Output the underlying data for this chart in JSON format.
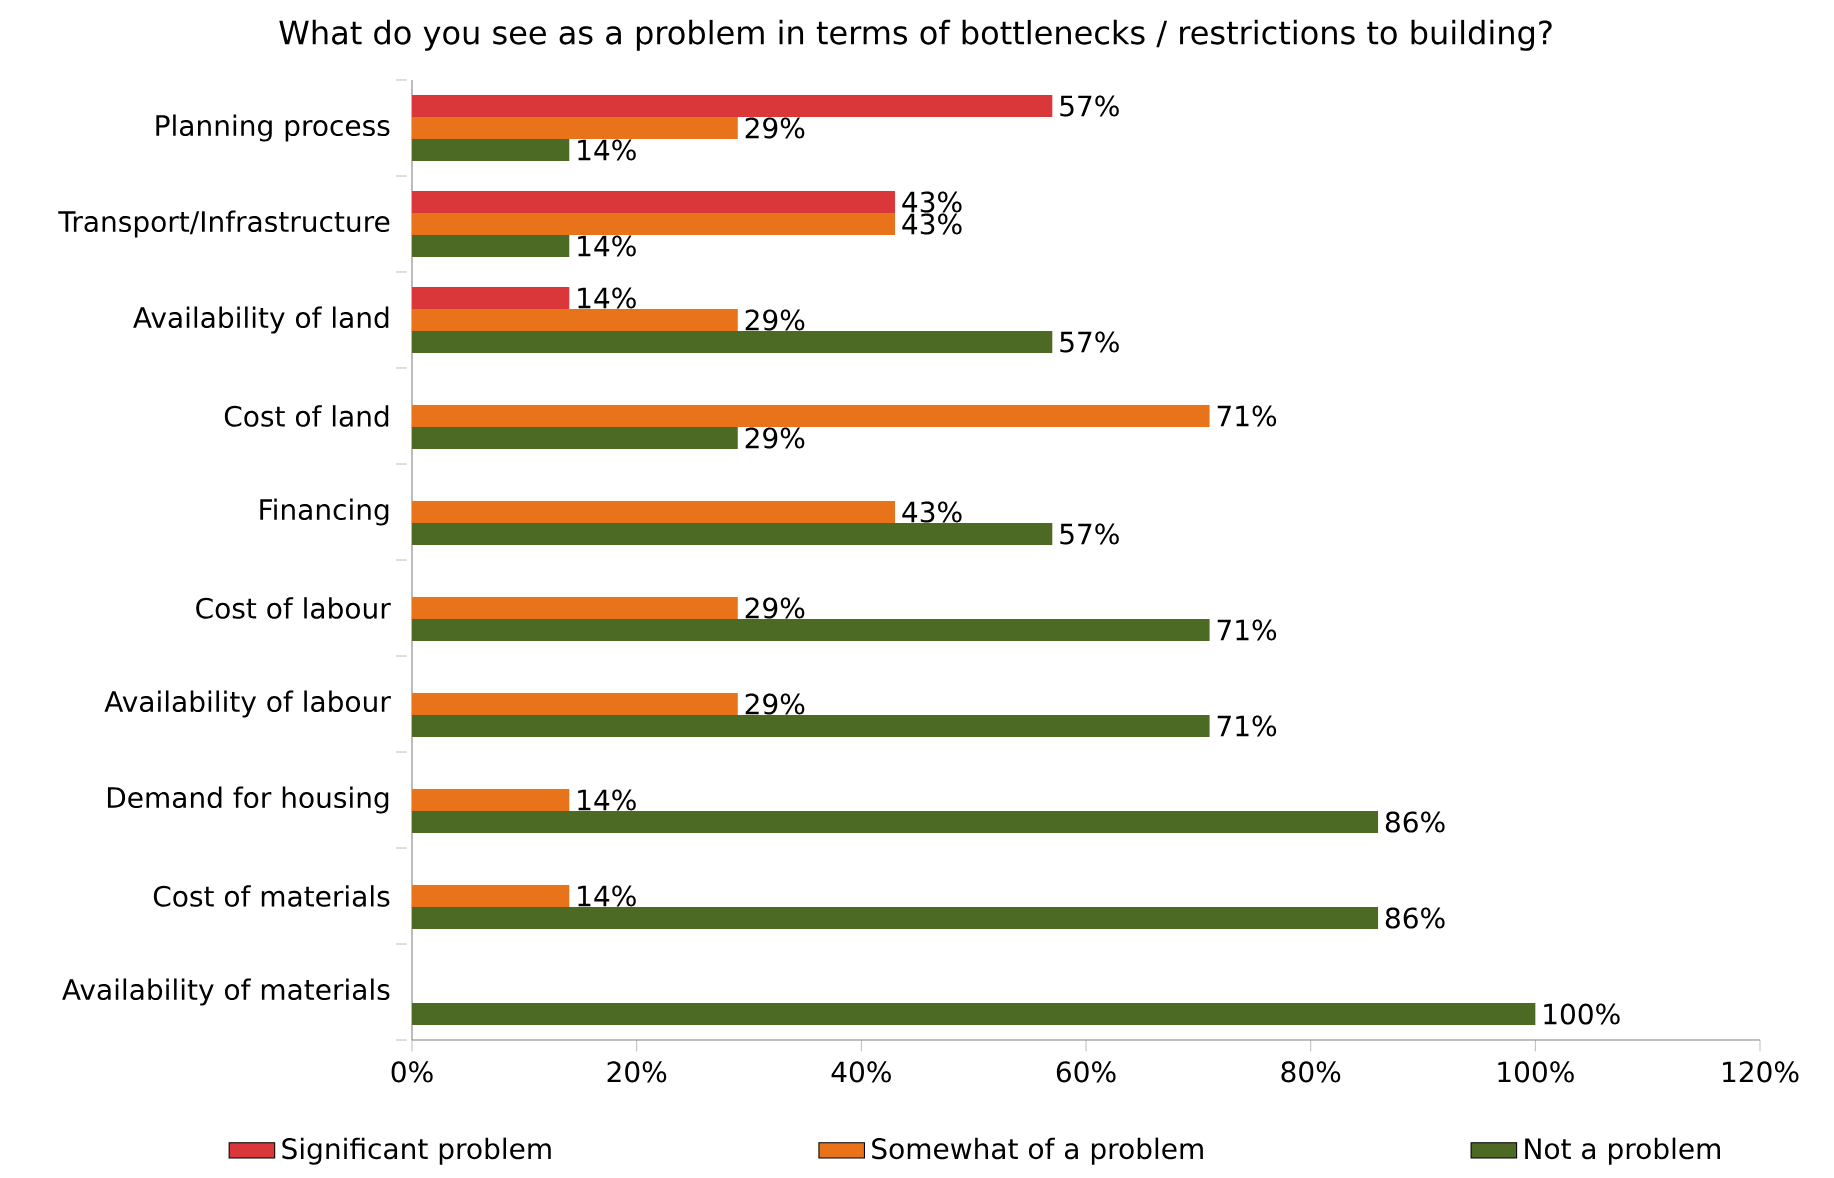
{
  "chart_data": {
    "type": "bar",
    "orientation": "horizontal",
    "title": "What do you see as a problem in terms of bottlenecks / restrictions to building?",
    "categories": [
      "Planning process",
      "Transport/Infrastructure",
      "Availability of land",
      "Cost of land",
      "Financing",
      "Cost of labour",
      "Availability of labour",
      "Demand for housing",
      "Cost of materials",
      "Availability of materials"
    ],
    "series": [
      {
        "name": "Significant problem",
        "color": "#d9373a",
        "values": [
          57,
          43,
          14,
          null,
          null,
          null,
          null,
          null,
          null,
          null
        ],
        "value_labels": [
          "57%",
          "43%",
          "14%",
          null,
          null,
          null,
          null,
          null,
          null,
          null
        ]
      },
      {
        "name": "Somewhat of a problem",
        "color": "#e8731a",
        "values": [
          29,
          43,
          29,
          71,
          43,
          29,
          29,
          14,
          14,
          null
        ],
        "value_labels": [
          "29%",
          "43%",
          "29%",
          "71%",
          "43%",
          "29%",
          "29%",
          "14%",
          "14%",
          null
        ]
      },
      {
        "name": "Not a problem",
        "color": "#4d6a24",
        "values": [
          14,
          14,
          57,
          29,
          57,
          71,
          71,
          86,
          86,
          100
        ],
        "value_labels": [
          "14%",
          "14%",
          "57%",
          "29%",
          "57%",
          "71%",
          "71%",
          "86%",
          "86%",
          "100%"
        ]
      }
    ],
    "xlim": [
      0,
      120
    ],
    "xticks": [
      {
        "value": 0,
        "label": "0%"
      },
      {
        "value": 20,
        "label": "20%"
      },
      {
        "value": 40,
        "label": "40%"
      },
      {
        "value": 60,
        "label": "60%"
      },
      {
        "value": 80,
        "label": "80%"
      },
      {
        "value": 100,
        "label": "100%"
      },
      {
        "value": 120,
        "label": "120%"
      }
    ],
    "legend": "bottom"
  }
}
